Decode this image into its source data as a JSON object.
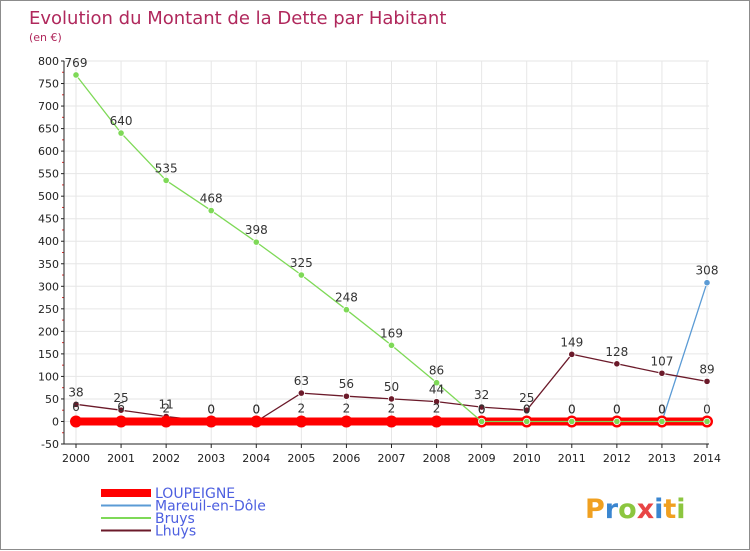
{
  "chart_data": {
    "type": "line",
    "title": "Evolution du Montant de la Dette par Habitant",
    "subtitle": "(en €)",
    "x": [
      "2000",
      "2001",
      "2002",
      "2003",
      "2004",
      "2005",
      "2006",
      "2007",
      "2008",
      "2009",
      "2010",
      "2011",
      "2012",
      "2013",
      "2014"
    ],
    "ylim": [
      -50,
      800
    ],
    "yticks": [
      -50,
      0,
      50,
      100,
      150,
      200,
      250,
      300,
      350,
      400,
      450,
      500,
      550,
      600,
      650,
      700,
      750,
      800
    ],
    "grid": true,
    "legend_position": "bottom-left",
    "series": [
      {
        "name": "LOUPEIGNE",
        "color": "#ff0000",
        "values": [
          0,
          0,
          0,
          0,
          0,
          0,
          0,
          0,
          0,
          0,
          0,
          0,
          0,
          0,
          0
        ],
        "labels": [
          "",
          "",
          "",
          "",
          "",
          "",
          "",
          "",
          "",
          "",
          "",
          "",
          "",
          "",
          ""
        ]
      },
      {
        "name": "Mareuil-en-Dôle",
        "color": "#5b9bd5",
        "values": [
          6,
          6,
          2,
          0,
          0,
          2,
          2,
          2,
          2,
          0,
          0,
          0,
          0,
          0,
          308
        ],
        "labels": [
          "6",
          "6",
          "2",
          "0",
          "0",
          "2",
          "2",
          "2",
          "2",
          "0",
          "0",
          "0",
          "0",
          "0",
          "308"
        ]
      },
      {
        "name": "Bruys",
        "color": "#7ed957",
        "values": [
          769,
          640,
          535,
          468,
          398,
          325,
          248,
          169,
          86,
          0,
          0,
          0,
          0,
          0,
          0
        ],
        "labels": [
          "769",
          "640",
          "535",
          "468",
          "398",
          "325",
          "248",
          "169",
          "86",
          "0",
          "0",
          "0",
          "0",
          "0",
          "0"
        ]
      },
      {
        "name": "Lhuys",
        "color": "#6b1a2a",
        "values": [
          38,
          25,
          11,
          0,
          0,
          63,
          56,
          50,
          44,
          32,
          25,
          149,
          128,
          107,
          89
        ],
        "labels": [
          "38",
          "25",
          "11",
          "0",
          "0",
          "63",
          "56",
          "50",
          "44",
          "32",
          "25",
          "149",
          "128",
          "107",
          "89"
        ]
      }
    ]
  },
  "branding": {
    "logo_text": "Proxiti",
    "logo_colors": [
      "#f0a020",
      "#3a86d0",
      "#8cc63f",
      "#e84545",
      "#3a86d0",
      "#f0a020",
      "#8cc63f"
    ]
  }
}
